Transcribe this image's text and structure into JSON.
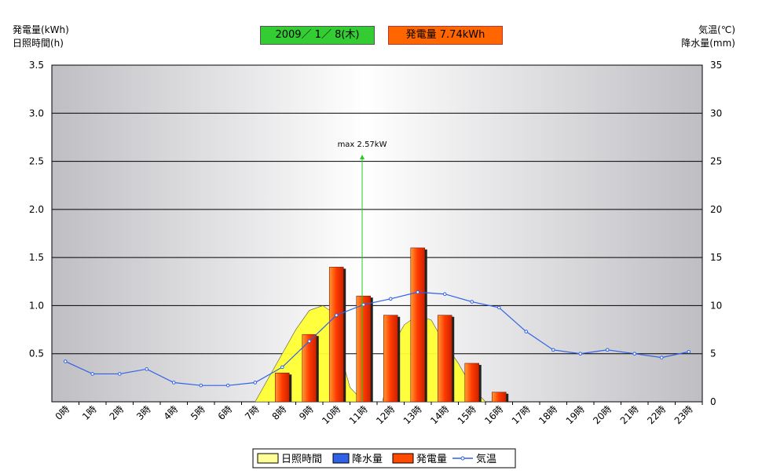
{
  "header": {
    "left_axis_title": [
      "発電量(kWh)",
      "日照時間(h)"
    ],
    "right_axis_title": [
      "気温(℃)",
      "降水量(mm)"
    ],
    "date": "2009／  1／  8(木)",
    "generation_summary": "発電量  7.74kWh"
  },
  "colors": {
    "generation_bar": "#ff4a00",
    "sunshine_area": "#ffff33",
    "temperature_line": "#2f62e6",
    "max_marker": "#22cc22",
    "date_box": "#33cc33",
    "summary_box": "#ff6600"
  },
  "chart_data": {
    "type": "bar",
    "categories": [
      "0時",
      "1時",
      "2時",
      "3時",
      "4時",
      "5時",
      "6時",
      "7時",
      "8時",
      "9時",
      "10時",
      "11時",
      "12時",
      "13時",
      "14時",
      "15時",
      "16時",
      "17時",
      "18時",
      "19時",
      "20時",
      "21時",
      "22時",
      "23時"
    ],
    "y_left": {
      "ylim": [
        0,
        3.5
      ],
      "ticks": [
        "0.5",
        "1.0",
        "1.5",
        "2.0",
        "2.5",
        "3.0",
        "3.5"
      ]
    },
    "y_right": {
      "ylim": [
        0,
        35
      ],
      "ticks": [
        "0",
        "5",
        "10",
        "15",
        "20",
        "25",
        "30",
        "35"
      ]
    },
    "grid": true,
    "legend_position": "bottom",
    "series": [
      {
        "name": "日照時間",
        "type": "area",
        "axis": "left",
        "points": [
          [
            7.5,
            0
          ],
          [
            8,
            0.25
          ],
          [
            8.5,
            0.5
          ],
          [
            9,
            0.75
          ],
          [
            9.5,
            0.95
          ],
          [
            10,
            1.0
          ],
          [
            10.5,
            0.9
          ],
          [
            10.75,
            0.4
          ],
          [
            11,
            0.15
          ],
          [
            11.5,
            0
          ],
          [
            12.2,
            0
          ],
          [
            12.7,
            0.65
          ],
          [
            13,
            0.8
          ],
          [
            13.5,
            0.9
          ],
          [
            14,
            0.85
          ],
          [
            14.5,
            0.6
          ],
          [
            15,
            0.4
          ],
          [
            15.5,
            0.15
          ],
          [
            16,
            0
          ]
        ]
      },
      {
        "name": "降水量",
        "type": "bar",
        "axis": "right",
        "values": [
          0,
          0,
          0,
          0,
          0,
          0,
          0,
          0,
          0,
          0,
          0,
          0,
          0,
          0,
          0,
          0,
          0,
          0,
          0,
          0,
          0,
          0,
          0,
          0
        ]
      },
      {
        "name": "発電量",
        "type": "bar",
        "axis": "left",
        "values": [
          0,
          0,
          0,
          0,
          0,
          0,
          0,
          0,
          0.3,
          0.7,
          1.4,
          1.1,
          0.9,
          1.6,
          0.9,
          0.4,
          0.1,
          0,
          0,
          0,
          0,
          0,
          0,
          0
        ]
      },
      {
        "name": "気温",
        "type": "line",
        "axis": "right",
        "values": [
          4.2,
          2.9,
          2.9,
          3.4,
          2.0,
          1.7,
          1.7,
          2.0,
          3.6,
          6.3,
          9.0,
          10.1,
          10.7,
          11.4,
          11.2,
          10.4,
          9.8,
          7.3,
          5.4,
          5.0,
          5.4,
          5.0,
          4.6,
          5.2
        ]
      }
    ],
    "annotation": {
      "text": "max  2.57kW",
      "value": 2.57,
      "x": 11
    }
  }
}
